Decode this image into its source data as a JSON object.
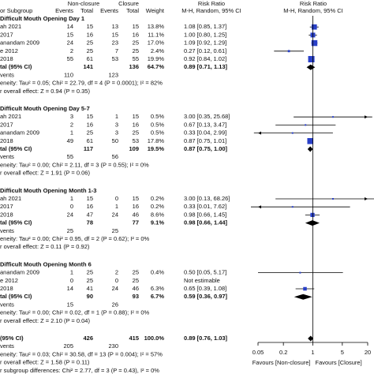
{
  "chart_data": {
    "type": "forest",
    "x_log": true,
    "xlim": [
      0.05,
      20
    ],
    "xticks": [
      0.05,
      0.2,
      1,
      5,
      20
    ],
    "square_color": "#2940c8",
    "diamond_color": "#000000",
    "header": {
      "study": "or Subgroup",
      "group1": "Non-closure",
      "group2": "Closure",
      "events": "Events",
      "total": "Total",
      "weight": "Weight",
      "rr_title": "Risk Ratio",
      "rr_method": "M-H, Random, 95% CI",
      "plot_title": "Risk Ratio",
      "plot_method": "M-H, Random, 95% CI"
    },
    "favours_left": "Favours [Non-closure]",
    "favours_right": "Favours [Closure]",
    "groups": [
      {
        "title": "Difficult Mouth Opening Day 1",
        "studies": [
          {
            "study": "ah 2021",
            "e1": 14,
            "n1": 15,
            "e2": 13,
            "n2": 15,
            "weight": 13.8,
            "weight_label": "13.8%",
            "rr": 1.08,
            "lo": 0.85,
            "hi": 1.37,
            "ci_label": "1.08 [0.85, 1.37]"
          },
          {
            "study": "2017",
            "e1": 15,
            "n1": 16,
            "e2": 15,
            "n2": 16,
            "weight": 11.1,
            "weight_label": "11.1%",
            "rr": 1.0,
            "lo": 0.8,
            "hi": 1.25,
            "ci_label": "1.00 [0.80, 1.25]"
          },
          {
            "study": "anandam 2009",
            "e1": 24,
            "n1": 25,
            "e2": 23,
            "n2": 25,
            "weight": 17.0,
            "weight_label": "17.0%",
            "rr": 1.09,
            "lo": 0.92,
            "hi": 1.29,
            "ci_label": "1.09 [0.92, 1.29]"
          },
          {
            "study": "e 2012",
            "e1": 2,
            "n1": 25,
            "e2": 7,
            "n2": 25,
            "weight": 2.4,
            "weight_label": "2.4%",
            "rr": 0.27,
            "lo": 0.12,
            "hi": 0.61,
            "ci_label": "0.27 [0.12, 0.61]"
          },
          {
            "study": "2018",
            "e1": 55,
            "n1": 61,
            "e2": 53,
            "n2": 55,
            "weight": 19.9,
            "weight_label": "19.9%",
            "rr": 0.92,
            "lo": 0.84,
            "hi": 1.02,
            "ci_label": "0.92 [0.84, 1.02]"
          }
        ],
        "total": {
          "label": "tal (95% CI)",
          "n1": 141,
          "n2": 136,
          "weight": 64.7,
          "weight_label": "64.7%",
          "rr": 0.89,
          "lo": 0.71,
          "hi": 1.13,
          "ci_label": "0.89 [0.71, 1.13]"
        },
        "events": {
          "label": "vents",
          "e1": 110,
          "e2": 123
        },
        "heterogeneity": "eneity: Tau² = 0.05; Chi² = 22.79, df = 4 (P = 0.0001); I² = 82%",
        "overall_effect": "r overall effect: Z = 0.94 (P = 0.35)"
      },
      {
        "title": "Difficult Mouth Opening Day 5-7",
        "studies": [
          {
            "study": "ah 2021",
            "e1": 3,
            "n1": 15,
            "e2": 1,
            "n2": 15,
            "weight": 0.5,
            "weight_label": "0.5%",
            "rr": 3.0,
            "lo": 0.35,
            "hi": 25.68,
            "ci_label": "3.00 [0.35, 25.68]"
          },
          {
            "study": "2017",
            "e1": 2,
            "n1": 16,
            "e2": 3,
            "n2": 16,
            "weight": 0.5,
            "weight_label": "0.5%",
            "rr": 0.67,
            "lo": 0.13,
            "hi": 3.47,
            "ci_label": "0.67 [0.13, 3.47]"
          },
          {
            "study": "anandam 2009",
            "e1": 1,
            "n1": 25,
            "e2": 3,
            "n2": 25,
            "weight": 0.5,
            "weight_label": "0.5%",
            "rr": 0.33,
            "lo": 0.04,
            "hi": 2.99,
            "ci_label": "0.33 [0.04, 2.99]"
          },
          {
            "study": "2018",
            "e1": 49,
            "n1": 61,
            "e2": 50,
            "n2": 53,
            "weight": 17.8,
            "weight_label": "17.8%",
            "rr": 0.87,
            "lo": 0.75,
            "hi": 1.01,
            "ci_label": "0.87 [0.75, 1.01]"
          }
        ],
        "total": {
          "label": "tal (95% CI)",
          "n1": 117,
          "n2": 109,
          "weight": 19.5,
          "weight_label": "19.5%",
          "rr": 0.87,
          "lo": 0.75,
          "hi": 1.0,
          "ci_label": "0.87 [0.75, 1.00]"
        },
        "events": {
          "label": "vents",
          "e1": 55,
          "e2": 56
        },
        "heterogeneity": "eneity: Tau² = 0.00; Chi² = 2.11, df = 3 (P = 0.55); I² = 0%",
        "overall_effect": "r overall effect: Z = 1.91 (P = 0.06)"
      },
      {
        "title": "Difficult Mouth Opening Month 1-3",
        "studies": [
          {
            "study": "ah 2021",
            "e1": 1,
            "n1": 15,
            "e2": 0,
            "n2": 15,
            "weight": 0.2,
            "weight_label": "0.2%",
            "rr": 3.0,
            "lo": 0.13,
            "hi": 68.26,
            "ci_label": "3.00 [0.13, 68.26]"
          },
          {
            "study": "2017",
            "e1": 0,
            "n1": 16,
            "e2": 1,
            "n2": 16,
            "weight": 0.2,
            "weight_label": "0.2%",
            "rr": 0.33,
            "lo": 0.01,
            "hi": 7.62,
            "ci_label": "0.33 [0.01, 7.62]"
          },
          {
            "study": "2018",
            "e1": 24,
            "n1": 47,
            "e2": 24,
            "n2": 46,
            "weight": 8.6,
            "weight_label": "8.6%",
            "rr": 0.98,
            "lo": 0.66,
            "hi": 1.45,
            "ci_label": "0.98 [0.66, 1.45]"
          }
        ],
        "total": {
          "label": "tal (95% CI)",
          "n1": 78,
          "n2": 77,
          "weight": 9.1,
          "weight_label": "9.1%",
          "rr": 0.98,
          "lo": 0.66,
          "hi": 1.44,
          "ci_label": "0.98 [0.66, 1.44]"
        },
        "events": {
          "label": "vents",
          "e1": 25,
          "e2": 25
        },
        "heterogeneity": "eneity: Tau² = 0.00; Chi² = 0.95, df = 2 (P = 0.62); I² = 0%",
        "overall_effect": "r overall effect: Z = 0.11 (P = 0.92)"
      },
      {
        "title": "Difficult Mouth Opening Month 6",
        "studies": [
          {
            "study": "anandam 2009",
            "e1": 1,
            "n1": 25,
            "e2": 2,
            "n2": 25,
            "weight": 0.4,
            "weight_label": "0.4%",
            "rr": 0.5,
            "lo": 0.05,
            "hi": 5.17,
            "ci_label": "0.50 [0.05, 5.17]"
          },
          {
            "study": "e 2012",
            "e1": 0,
            "n1": 25,
            "e2": 0,
            "n2": 25,
            "weight": null,
            "rr": null,
            "lo": null,
            "hi": null,
            "ci_label": "Not estimable"
          },
          {
            "study": "2018",
            "e1": 14,
            "n1": 41,
            "e2": 24,
            "n2": 46,
            "weight": 6.3,
            "weight_label": "6.3%",
            "rr": 0.65,
            "lo": 0.39,
            "hi": 1.08,
            "ci_label": "0.65 [0.39, 1.08]"
          }
        ],
        "total": {
          "label": "tal (95% CI)",
          "n1": 90,
          "n2": 93,
          "weight": 6.7,
          "weight_label": "6.7%",
          "rr": 0.59,
          "lo": 0.36,
          "hi": 0.97,
          "ci_label": "0.59 [0.36, 0.97]"
        },
        "events": {
          "label": "vents",
          "e1": 15,
          "e2": 26
        },
        "heterogeneity": "eneity: Tau² = 0.00; Chi² = 0.02, df = 1 (P = 0.88); I² = 0%",
        "overall_effect": "r overall effect: Z = 2.10 (P = 0.04)"
      }
    ],
    "overall": {
      "total": {
        "label": "(95% CI)",
        "n1": 426,
        "n2": 415,
        "weight": 100.0,
        "weight_label": "100.0%",
        "rr": 0.89,
        "lo": 0.76,
        "hi": 1.03,
        "ci_label": "0.89 [0.76, 1.03]"
      },
      "events": {
        "label": "vents",
        "e1": 205,
        "e2": 230
      },
      "heterogeneity": "eneity: Tau² = 0.03; Chi² = 30.58, df = 13 (P = 0.004); I² = 57%",
      "overall_effect": "r overall effect: Z = 1.58 (P = 0.11)",
      "subgroup_differences": "r subgroup differences: Chi² = 2.77, df = 3 (P = 0.43), I² = 0%"
    }
  }
}
